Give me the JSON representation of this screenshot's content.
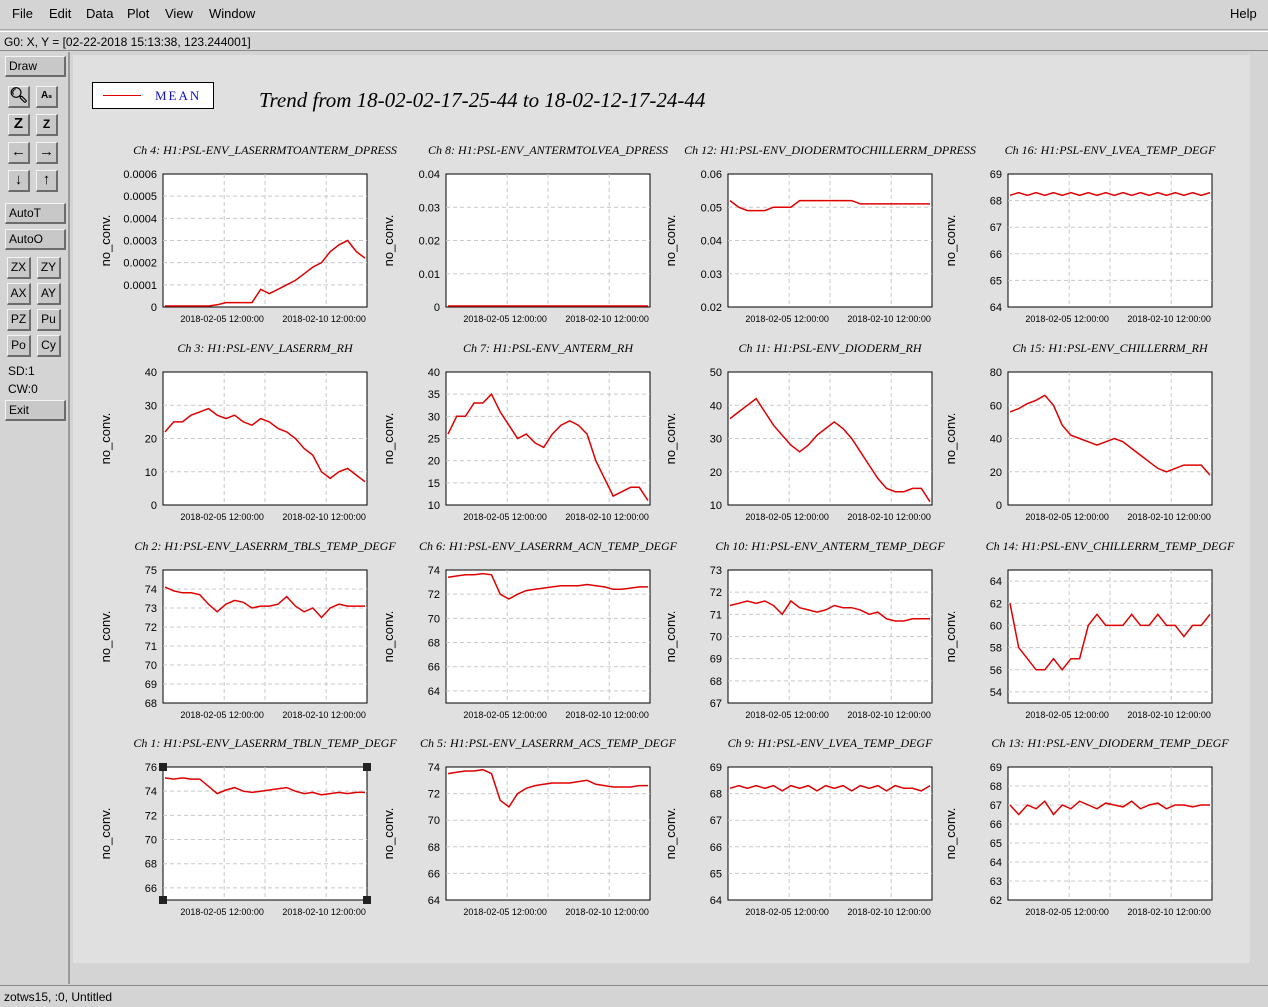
{
  "menubar": {
    "items": [
      "File",
      "Edit",
      "Data",
      "Plot",
      "View",
      "Window"
    ],
    "help": "Help"
  },
  "coord_readout": "G0: X, Y = [02-22-2018 15:13:38, 123.244001]",
  "toolbar": {
    "draw": "Draw",
    "autot": "AutoT",
    "autoo": "AutoO",
    "zoom_icons": [
      "zoom-tool-icon",
      "as-icon",
      "zoom-in-icon",
      "zoom-out-icon",
      "arrow-left-icon",
      "arrow-right-icon",
      "arrow-down-icon",
      "arrow-up-icon"
    ],
    "pair_buttons": [
      "ZX",
      "ZY",
      "AX",
      "AY",
      "PZ",
      "Pu",
      "Po",
      "Cy"
    ],
    "sd": "SD:1",
    "cw": "CW:0",
    "exit": "Exit"
  },
  "legend": {
    "label": "MEAN",
    "color": "#e00000"
  },
  "title": "Trend from 18-02-02-17-25-44 to 18-02-12-17-24-44",
  "statusbar": "zotws15, :0, Untitled",
  "x_tick_labels": [
    "2018-02-05 12:00:00",
    "2018-02-10 12:00:00"
  ],
  "ylabel": "no_conv.",
  "chart_data": [
    {
      "type": "line",
      "title": "Ch 4: H1:PSL-ENV_LASERRMTOANTERM_DPRESS",
      "ylabel": "no_conv.",
      "ylim": [
        0,
        0.0006
      ],
      "yticks": [
        "0",
        "0.0001",
        "0.0002",
        "0.0003",
        "0.0004",
        "0.0005",
        "0.0006"
      ],
      "x_range_days": [
        0,
        10
      ],
      "series": [
        {
          "values": [
            0,
            0,
            0,
            0,
            0,
            0,
            1e-05,
            2e-05,
            2e-05,
            2e-05,
            2e-05,
            8e-05,
            6e-05,
            8e-05,
            0.0001,
            0.00012,
            0.00015,
            0.00018,
            0.0002,
            0.00025,
            0.00028,
            0.0003,
            0.00025,
            0.00022
          ]
        }
      ]
    },
    {
      "type": "line",
      "title": "Ch 8: H1:PSL-ENV_ANTERMTOLVEA_DPRESS",
      "ylabel": "no_conv.",
      "ylim": [
        0,
        0.04
      ],
      "yticks": [
        "0",
        "0.01",
        "0.02",
        "0.03",
        "0.04"
      ],
      "x_range_days": [
        0,
        10
      ],
      "series": [
        {
          "values": [
            0,
            0,
            0,
            0,
            0,
            0,
            0,
            0,
            0,
            0,
            0,
            0,
            0,
            0,
            0,
            0,
            0,
            0,
            0,
            0,
            0,
            0,
            0,
            0
          ]
        }
      ]
    },
    {
      "type": "line",
      "title": "Ch 12: H1:PSL-ENV_DIODERMTOCHILLERRM_DPRESS",
      "ylabel": "no_conv.",
      "ylim": [
        0.02,
        0.06
      ],
      "yticks": [
        "0.02",
        "0.03",
        "0.04",
        "0.05",
        "0.06"
      ],
      "x_range_days": [
        0,
        10
      ],
      "series": [
        {
          "values": [
            0.052,
            0.05,
            0.049,
            0.049,
            0.049,
            0.05,
            0.05,
            0.05,
            0.052,
            0.052,
            0.052,
            0.052,
            0.052,
            0.052,
            0.052,
            0.051,
            0.051,
            0.051,
            0.051,
            0.051,
            0.051,
            0.051,
            0.051,
            0.051
          ]
        }
      ]
    },
    {
      "type": "line",
      "title": "Ch 16: H1:PSL-ENV_LVEA_TEMP_DEGF",
      "ylabel": "no_conv.",
      "ylim": [
        64,
        69
      ],
      "yticks": [
        "64",
        "65",
        "66",
        "67",
        "68",
        "69"
      ],
      "x_range_days": [
        0,
        10
      ],
      "series": [
        {
          "values": [
            68.2,
            68.3,
            68.2,
            68.3,
            68.2,
            68.3,
            68.2,
            68.3,
            68.2,
            68.3,
            68.2,
            68.3,
            68.2,
            68.3,
            68.2,
            68.3,
            68.2,
            68.3,
            68.2,
            68.3,
            68.2,
            68.3,
            68.2,
            68.3
          ]
        }
      ]
    },
    {
      "type": "line",
      "title": "Ch 3: H1:PSL-ENV_LASERRM_RH",
      "ylabel": "no_conv.",
      "ylim": [
        0,
        40
      ],
      "yticks": [
        "0",
        "10",
        "20",
        "30",
        "40"
      ],
      "x_range_days": [
        0,
        10
      ],
      "series": [
        {
          "values": [
            22,
            25,
            25,
            27,
            28,
            29,
            27,
            26,
            27,
            25,
            24,
            26,
            25,
            23,
            22,
            20,
            17,
            15,
            10,
            8,
            10,
            11,
            9,
            7
          ]
        }
      ]
    },
    {
      "type": "line",
      "title": "Ch 7: H1:PSL-ENV_ANTERM_RH",
      "ylabel": "no_conv.",
      "ylim": [
        10,
        40
      ],
      "yticks": [
        "10",
        "15",
        "20",
        "25",
        "30",
        "35",
        "40"
      ],
      "x_range_days": [
        0,
        10
      ],
      "series": [
        {
          "values": [
            26,
            30,
            30,
            33,
            33,
            35,
            31,
            28,
            25,
            26,
            24,
            23,
            26,
            28,
            29,
            28,
            26,
            20,
            16,
            12,
            13,
            14,
            14,
            11
          ]
        }
      ]
    },
    {
      "type": "line",
      "title": "Ch 11: H1:PSL-ENV_DIODERM_RH",
      "ylabel": "no_conv.",
      "ylim": [
        10,
        50
      ],
      "yticks": [
        "10",
        "20",
        "30",
        "40",
        "50"
      ],
      "x_range_days": [
        0,
        10
      ],
      "series": [
        {
          "values": [
            36,
            38,
            40,
            42,
            38,
            34,
            31,
            28,
            26,
            28,
            31,
            33,
            35,
            33,
            30,
            26,
            22,
            18,
            15,
            14,
            14,
            15,
            15,
            11
          ]
        }
      ]
    },
    {
      "type": "line",
      "title": "Ch 15: H1:PSL-ENV_CHILLERRM_RH",
      "ylabel": "no_conv.",
      "ylim": [
        0,
        80
      ],
      "yticks": [
        "0",
        "20",
        "40",
        "60",
        "80"
      ],
      "x_range_days": [
        0,
        10
      ],
      "series": [
        {
          "values": [
            56,
            58,
            61,
            63,
            66,
            60,
            48,
            42,
            40,
            38,
            36,
            38,
            40,
            38,
            34,
            30,
            26,
            22,
            20,
            22,
            24,
            24,
            24,
            18
          ]
        }
      ]
    },
    {
      "type": "line",
      "title": "Ch 2: H1:PSL-ENV_LASERRM_TBLS_TEMP_DEGF",
      "ylabel": "no_conv.",
      "ylim": [
        68,
        75
      ],
      "yticks": [
        "68",
        "69",
        "70",
        "71",
        "72",
        "73",
        "74",
        "75"
      ],
      "x_range_days": [
        0,
        10
      ],
      "series": [
        {
          "values": [
            74.1,
            73.9,
            73.8,
            73.8,
            73.7,
            73.2,
            72.8,
            73.2,
            73.4,
            73.3,
            73.0,
            73.1,
            73.1,
            73.2,
            73.6,
            73.1,
            72.8,
            73.0,
            72.5,
            73.0,
            73.2,
            73.1,
            73.1,
            73.1
          ]
        }
      ]
    },
    {
      "type": "line",
      "title": "Ch 6: H1:PSL-ENV_LASERRM_ACN_TEMP_DEGF",
      "ylabel": "no_conv.",
      "ylim": [
        63,
        74
      ],
      "yticks": [
        "64",
        "66",
        "68",
        "70",
        "72",
        "74"
      ],
      "x_range_days": [
        0,
        10
      ],
      "series": [
        {
          "values": [
            73.4,
            73.5,
            73.6,
            73.6,
            73.7,
            73.6,
            72.0,
            71.6,
            72.0,
            72.3,
            72.4,
            72.5,
            72.6,
            72.7,
            72.7,
            72.7,
            72.8,
            72.7,
            72.6,
            72.4,
            72.4,
            72.5,
            72.6,
            72.6
          ]
        }
      ]
    },
    {
      "type": "line",
      "title": "Ch 10: H1:PSL-ENV_ANTERM_TEMP_DEGF",
      "ylabel": "no_conv.",
      "ylim": [
        67,
        73
      ],
      "yticks": [
        "67",
        "68",
        "69",
        "70",
        "71",
        "72",
        "73"
      ],
      "x_range_days": [
        0,
        10
      ],
      "series": [
        {
          "values": [
            71.4,
            71.5,
            71.6,
            71.5,
            71.6,
            71.4,
            71.0,
            71.6,
            71.3,
            71.2,
            71.1,
            71.2,
            71.4,
            71.3,
            71.3,
            71.2,
            71.0,
            71.1,
            70.8,
            70.7,
            70.7,
            70.8,
            70.8,
            70.8
          ]
        }
      ]
    },
    {
      "type": "line",
      "title": "Ch 14: H1:PSL-ENV_CHILLERRM_TEMP_DEGF",
      "ylabel": "no_conv.",
      "ylim": [
        53,
        65
      ],
      "yticks": [
        "54",
        "56",
        "58",
        "60",
        "62",
        "64"
      ],
      "x_range_days": [
        0,
        10
      ],
      "series": [
        {
          "values": [
            62,
            58,
            57,
            56,
            56,
            57,
            56,
            57,
            57,
            60,
            61,
            60,
            60,
            60,
            61,
            60,
            60,
            61,
            60,
            60,
            59,
            60,
            60,
            61
          ]
        }
      ]
    },
    {
      "type": "line",
      "title": "Ch 1: H1:PSL-ENV_LASERRM_TBLN_TEMP_DEGF",
      "ylabel": "no_conv.",
      "ylim": [
        65,
        76
      ],
      "yticks": [
        "66",
        "68",
        "70",
        "72",
        "74",
        "76"
      ],
      "x_range_days": [
        0,
        10
      ],
      "series": [
        {
          "values": [
            75.1,
            75.0,
            75.1,
            75.0,
            75.0,
            74.4,
            73.8,
            74.1,
            74.3,
            74.0,
            73.9,
            74.0,
            74.1,
            74.2,
            74.3,
            74.0,
            73.8,
            73.9,
            73.7,
            73.8,
            73.9,
            73.8,
            73.9,
            73.9
          ]
        }
      ]
    },
    {
      "type": "line",
      "title": "Ch 5: H1:PSL-ENV_LASERRM_ACS_TEMP_DEGF",
      "ylabel": "no_conv.",
      "ylim": [
        64,
        74
      ],
      "yticks": [
        "64",
        "66",
        "68",
        "70",
        "72",
        "74"
      ],
      "x_range_days": [
        0,
        10
      ],
      "series": [
        {
          "values": [
            73.5,
            73.6,
            73.7,
            73.7,
            73.8,
            73.5,
            71.5,
            71.0,
            72.0,
            72.4,
            72.6,
            72.7,
            72.8,
            72.8,
            72.8,
            72.9,
            73.0,
            72.7,
            72.6,
            72.5,
            72.5,
            72.5,
            72.6,
            72.6
          ]
        }
      ]
    },
    {
      "type": "line",
      "title": "Ch 9: H1:PSL-ENV_LVEA_TEMP_DEGF",
      "ylabel": "no_conv.",
      "ylim": [
        64,
        69
      ],
      "yticks": [
        "64",
        "65",
        "66",
        "67",
        "68",
        "69"
      ],
      "x_range_days": [
        0,
        10
      ],
      "series": [
        {
          "values": [
            68.2,
            68.3,
            68.2,
            68.3,
            68.2,
            68.3,
            68.1,
            68.3,
            68.2,
            68.3,
            68.1,
            68.3,
            68.2,
            68.3,
            68.1,
            68.3,
            68.2,
            68.3,
            68.1,
            68.3,
            68.2,
            68.2,
            68.1,
            68.3
          ]
        }
      ]
    },
    {
      "type": "line",
      "title": "Ch 13: H1:PSL-ENV_DIODERM_TEMP_DEGF",
      "ylabel": "no_conv.",
      "ylim": [
        62,
        69
      ],
      "yticks": [
        "62",
        "63",
        "64",
        "65",
        "66",
        "67",
        "68",
        "69"
      ],
      "x_range_days": [
        0,
        10
      ],
      "series": [
        {
          "values": [
            67,
            66.5,
            67,
            66.8,
            67.2,
            66.5,
            67,
            66.8,
            67.2,
            67,
            66.8,
            67.1,
            67,
            66.9,
            67.2,
            66.8,
            67,
            67.1,
            66.8,
            67,
            67,
            66.9,
            67,
            67
          ]
        }
      ]
    }
  ]
}
